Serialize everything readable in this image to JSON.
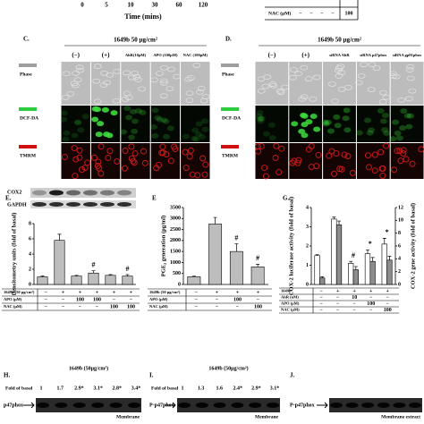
{
  "top": {
    "x_labels": [
      "0",
      "5",
      "10",
      "30",
      "60",
      "120"
    ],
    "x_title": "Time (mins)",
    "table_label": "NAC (μM)",
    "table_cells": [
      "−",
      "−",
      "−",
      "−",
      "100"
    ]
  },
  "panel_c": {
    "letter": "C.",
    "treatment": "1649b 50 μg/cm²",
    "columns": [
      "(−)",
      "(+)",
      "AhR(10μM)",
      "APO (100μM)",
      "NAC (100μM)"
    ],
    "rows": [
      "Phase",
      "DCF-DA",
      "TMRM"
    ]
  },
  "panel_d": {
    "letter": "D.",
    "treatment": "1649b 50 μg/cm²",
    "columns": [
      "(−)",
      "(+)",
      "siRNA AhR",
      "siRNA p47phox",
      "siRNA gp91phox"
    ],
    "rows": [
      "Phase",
      "DCF-DA",
      "TMRM"
    ]
  },
  "panel_e": {
    "letter": "E.",
    "blot_labels": [
      "COX2",
      "GAPDH"
    ],
    "chart": {
      "type": "bar",
      "y_label": "Densitometry units (fold of basal)",
      "ylim": [
        0,
        8
      ],
      "yticks": [
        0,
        2,
        4,
        6,
        8
      ],
      "color": "#bdbdbd",
      "values": [
        1,
        5.8,
        1.1,
        1.5,
        1.2,
        1.1
      ],
      "errors": [
        0.1,
        0.8,
        0.1,
        0.3,
        0.1,
        0.2
      ],
      "annotations": [
        {
          "index": 3,
          "text": "#"
        },
        {
          "index": 5,
          "text": "#"
        }
      ]
    },
    "table": {
      "rows": [
        {
          "label": "1649b (50 μg/cm²)",
          "cells": [
            "−",
            "+",
            "+",
            "+",
            "+",
            "+"
          ]
        },
        {
          "label": "APO (μM)",
          "cells": [
            "−",
            "−",
            "100",
            "100",
            "−",
            "−"
          ]
        },
        {
          "label": "NAC (μM)",
          "cells": [
            "−",
            "−",
            "−",
            "−",
            "100",
            "100"
          ]
        }
      ]
    }
  },
  "panel_f": {
    "letter": "E",
    "chart": {
      "type": "bar",
      "y_label": "PGE₂ generation (pg/ml)",
      "ylim": [
        0,
        3500
      ],
      "yticks": [
        0,
        500,
        1000,
        1500,
        2000,
        2500,
        3000,
        3500
      ],
      "color": "#bdbdbd",
      "values": [
        350,
        2750,
        1500,
        800
      ],
      "errors": [
        30,
        300,
        350,
        120
      ],
      "annotations": [
        {
          "index": 2,
          "text": "#"
        },
        {
          "index": 3,
          "text": "#"
        }
      ]
    },
    "table": {
      "rows": [
        {
          "label": "1649b (50 μg/cm²)",
          "cells": [
            "−",
            "+",
            "+",
            "+"
          ]
        },
        {
          "label": "APO (μM)",
          "cells": [
            "−",
            "−",
            "100",
            "−"
          ]
        },
        {
          "label": "NAC (μM)",
          "cells": [
            "−",
            "−",
            "−",
            "100"
          ]
        }
      ]
    }
  },
  "panel_g": {
    "letter": "G.",
    "chart": {
      "type": "bar",
      "y_label": "COX-2 luciferase activity (fold of basal)",
      "y2_label": "COX-2 gene activity (fold of basal)",
      "ylim": [
        0,
        4
      ],
      "yticks": [
        0,
        1,
        2,
        3,
        4
      ],
      "y2lim": [
        0,
        12
      ],
      "y2ticks": [
        0,
        2,
        4,
        6,
        8,
        10,
        12
      ],
      "series": [
        {
          "color": "#ffffff",
          "values": [
            1.5,
            3.4,
            1.1,
            1.6,
            2.1
          ],
          "errors": [
            0.05,
            0.1,
            0.1,
            0.2,
            0.3
          ]
        },
        {
          "color": "#8c8c8c",
          "axis": "y2",
          "values": [
            1,
            9.3,
            2.3,
            3.6,
            3.8
          ],
          "errors": [
            0.2,
            0.6,
            0.5,
            0.6,
            0.6
          ]
        }
      ],
      "annotations": [
        {
          "index": 2,
          "text": "#"
        },
        {
          "index": 3,
          "text": "*"
        },
        {
          "index": 4,
          "text": "*"
        }
      ]
    },
    "table": {
      "rows": [
        {
          "label": "1649b",
          "cells": [
            "−",
            "+",
            "+",
            "+",
            "+"
          ]
        },
        {
          "label": "AhR (nM)",
          "cells": [
            "−",
            "−",
            "10",
            "−",
            "−"
          ]
        },
        {
          "label": "APO (μM)",
          "cells": [
            "−",
            "−",
            "−",
            "100",
            "−"
          ]
        },
        {
          "label": "NAC (μM)",
          "cells": [
            "−",
            "−",
            "−",
            "−",
            "100"
          ]
        }
      ]
    }
  },
  "panel_h": {
    "letter": "H.",
    "treatment": "1649b (50μg/cm²)",
    "fold_label": "Fold of basal",
    "folds": [
      "1",
      "1.7",
      "2.9*",
      "3.1*",
      "2.8*",
      "3.4*"
    ],
    "band_label": "p47phox",
    "fraction": "Membrane"
  },
  "panel_i": {
    "letter": "I.",
    "treatment": "1649b (50μg/cm²)",
    "fold_label": "Fold of basal",
    "folds": [
      "1",
      "1.3",
      "1.6",
      "2.4*",
      "2.9*",
      "3.1*"
    ],
    "band_label": "P-p47phox",
    "fraction": "Membrane"
  },
  "panel_j": {
    "letter": "J.",
    "band_label": "P-p47phox",
    "fraction": "Membrane extract"
  }
}
